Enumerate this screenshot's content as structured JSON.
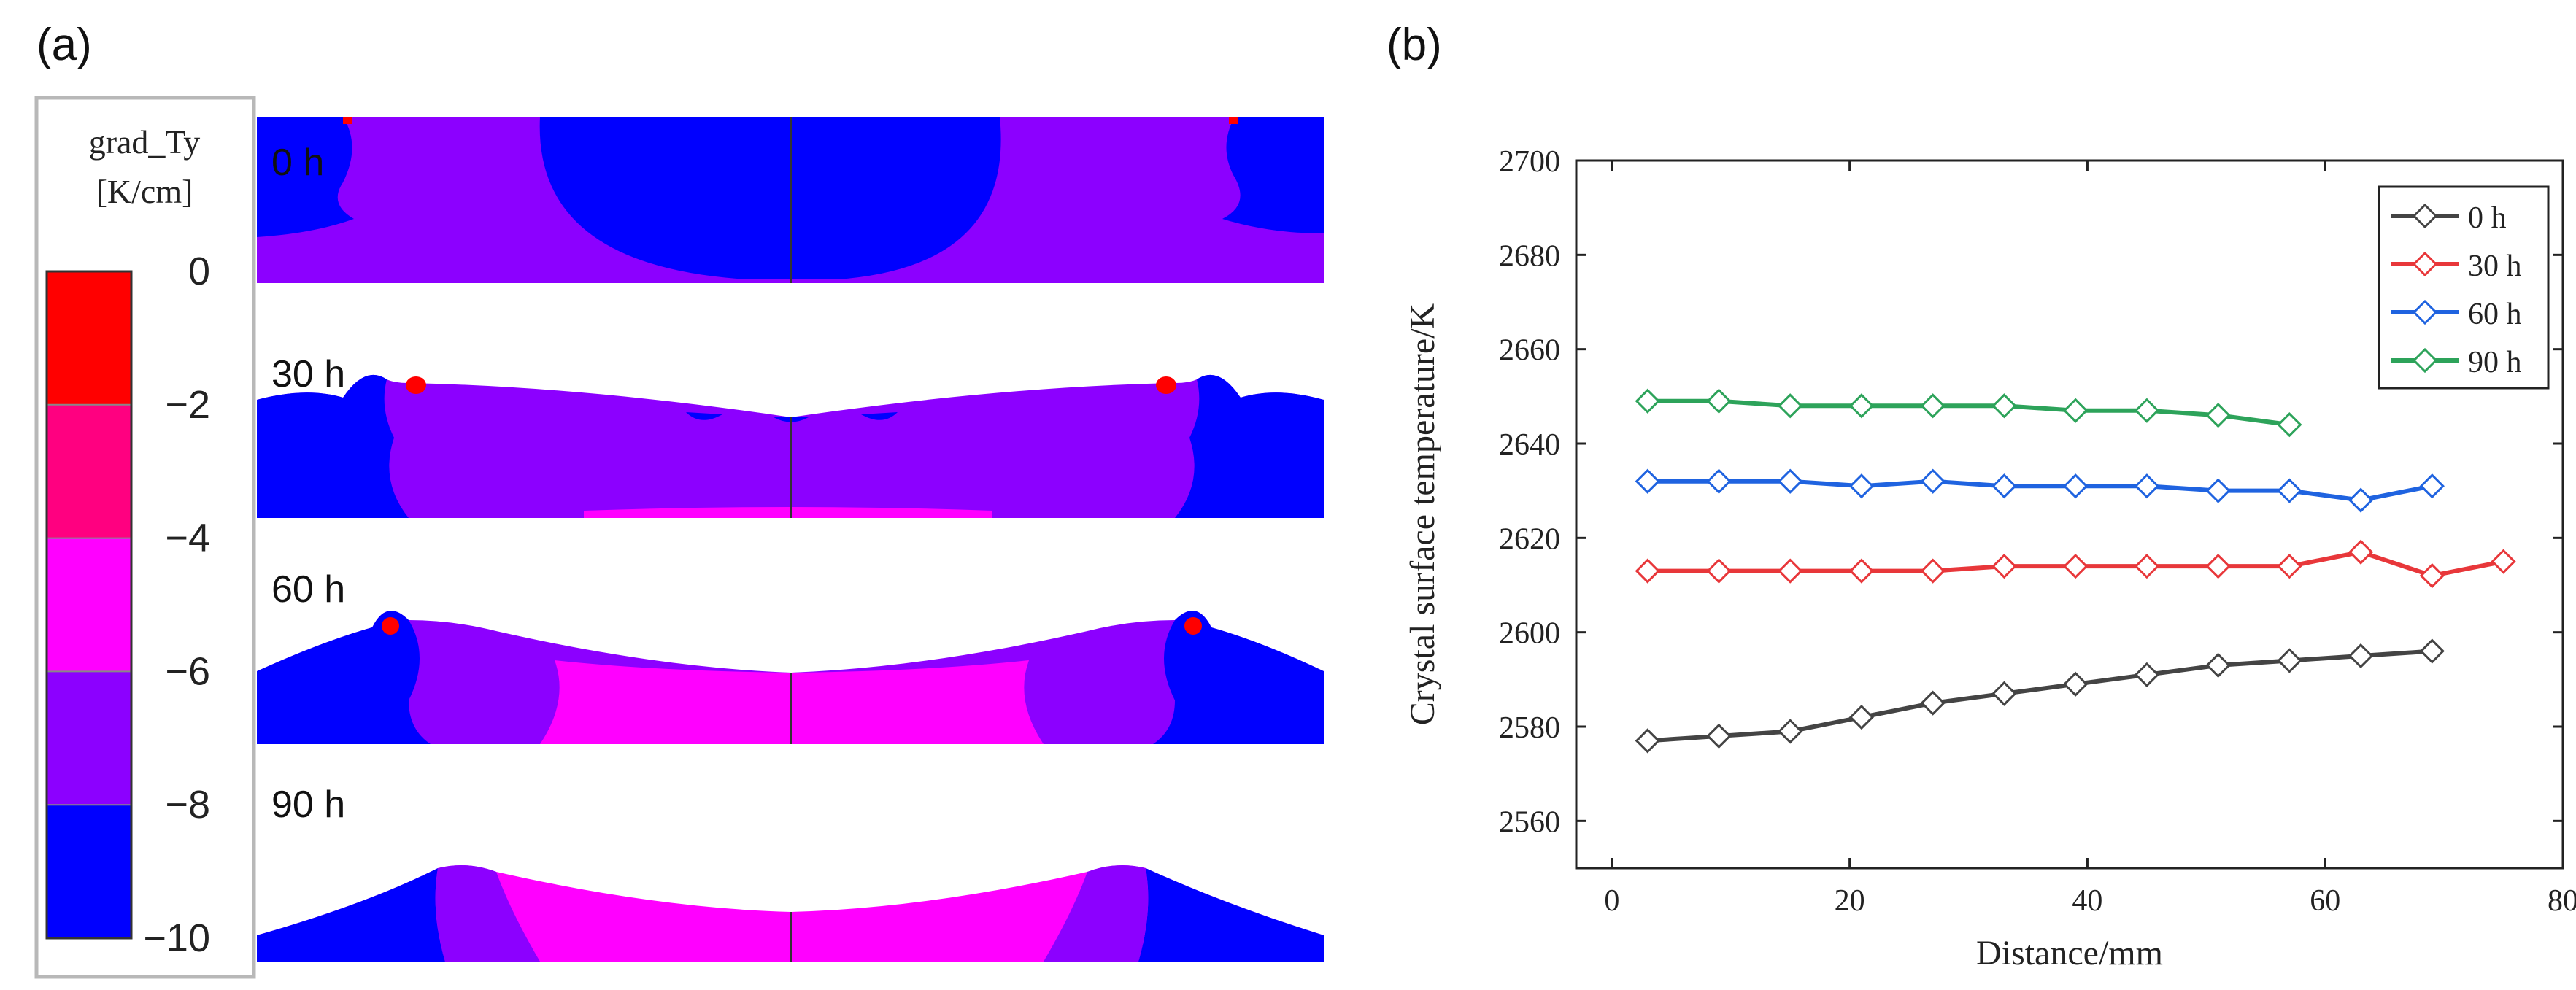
{
  "panel_a": {
    "label": "(a)",
    "colorbar": {
      "title_line1": "grad_Ty",
      "title_line2": "[K/cm]",
      "ticks": [
        "0",
        "−2",
        "−4",
        "−6",
        "−8",
        "−10"
      ],
      "colors": [
        "#ff0000",
        "#ff0080",
        "#ff00ff",
        "#8c00ff",
        "#0000ff"
      ]
    },
    "snapshots": [
      {
        "label": "0 h"
      },
      {
        "label": "30 h"
      },
      {
        "label": "60 h"
      },
      {
        "label": "90 h"
      }
    ]
  },
  "panel_b": {
    "label": "(b)"
  },
  "chart_data": {
    "type": "line",
    "title": "",
    "xlabel": "Distance/mm",
    "ylabel": "Crystal surface temperature/K",
    "xlim": [
      -3,
      80
    ],
    "ylim": [
      2550,
      2700
    ],
    "xticks": [
      0,
      20,
      40,
      60,
      80
    ],
    "yticks": [
      2560,
      2580,
      2600,
      2620,
      2640,
      2660,
      2680,
      2700
    ],
    "legend_position": "top-right",
    "marker": "diamond",
    "series": [
      {
        "name": "0 h",
        "color": "#444444",
        "x": [
          3,
          9,
          15,
          21,
          27,
          33,
          39,
          45,
          51,
          57,
          63,
          69
        ],
        "y": [
          2577,
          2578,
          2579,
          2582,
          2585,
          2587,
          2589,
          2591,
          2593,
          2594,
          2595,
          2596
        ]
      },
      {
        "name": "30 h",
        "color": "#e8373a",
        "x": [
          3,
          9,
          15,
          21,
          27,
          33,
          39,
          45,
          51,
          57,
          63,
          69,
          75
        ],
        "y": [
          2613,
          2613,
          2613,
          2613,
          2613,
          2614,
          2614,
          2614,
          2614,
          2614,
          2617,
          2612,
          2615
        ]
      },
      {
        "name": "60 h",
        "color": "#1f63e0",
        "x": [
          3,
          9,
          15,
          21,
          27,
          33,
          39,
          45,
          51,
          57,
          63,
          69
        ],
        "y": [
          2632,
          2632,
          2632,
          2631,
          2632,
          2631,
          2631,
          2631,
          2630,
          2630,
          2628,
          2631
        ]
      },
      {
        "name": "90 h",
        "color": "#2da35a",
        "x": [
          3,
          9,
          15,
          21,
          27,
          33,
          39,
          45,
          51,
          57
        ],
        "y": [
          2649,
          2649,
          2648,
          2648,
          2648,
          2648,
          2647,
          2647,
          2646,
          2644
        ]
      }
    ]
  }
}
